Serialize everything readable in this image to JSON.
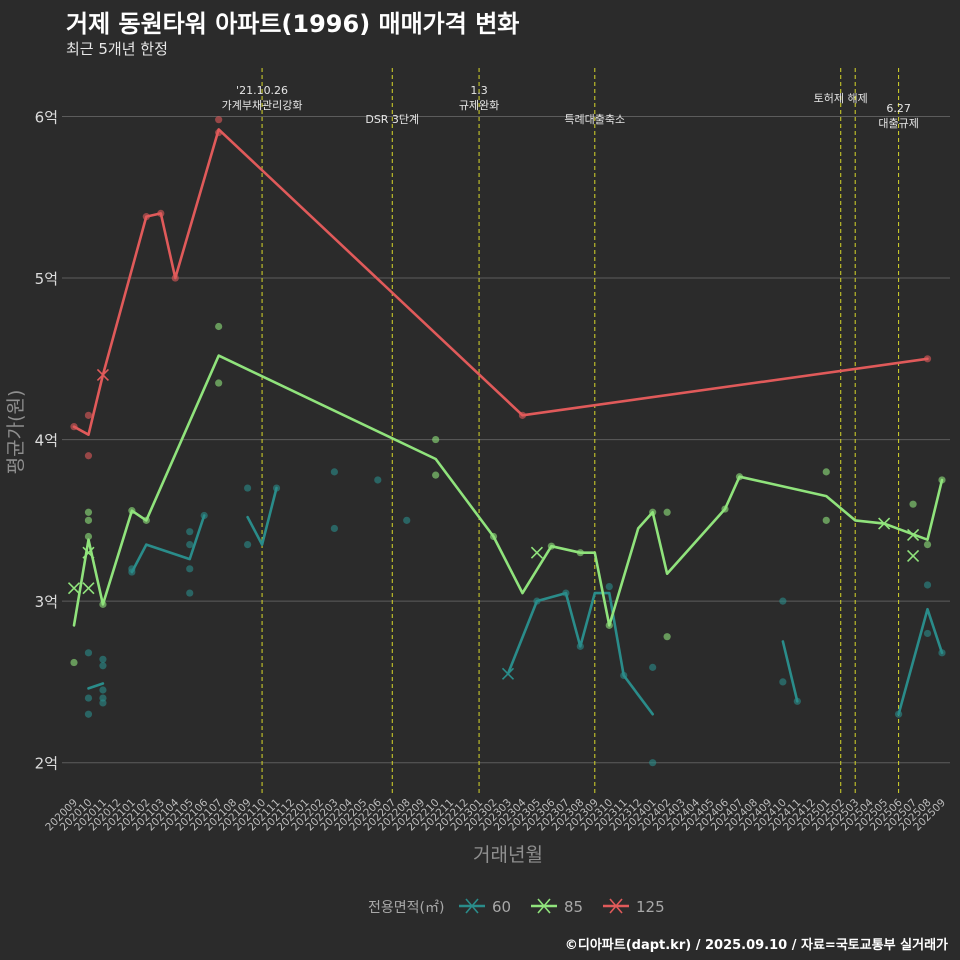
{
  "title": "거제 동원타워 아파트(1996) 매매가격 변화",
  "subtitle": "최근 5개년 한정",
  "caption": "©디아파트(dapt.kr) / 2025.09.10 / 자료=국토교통부 실거래가",
  "colors": {
    "background": "#2b2b2b",
    "grid": "#5c5c5c",
    "event_line": "#d7d72a",
    "s60": "#2a8c8a",
    "s85": "#90e37c",
    "s125": "#e05a5a"
  },
  "chart_data": {
    "type": "line",
    "xlabel": "거래년월",
    "ylabel": "평균가(원)",
    "ylim": [
      1.8,
      6.3
    ],
    "y_ticks": [
      {
        "value": 2,
        "label": "2억"
      },
      {
        "value": 3,
        "label": "3억"
      },
      {
        "value": 4,
        "label": "4억"
      },
      {
        "value": 5,
        "label": "5억"
      },
      {
        "value": 6,
        "label": "6억"
      }
    ],
    "categories": [
      "202009",
      "202010",
      "202011",
      "202012",
      "202101",
      "202102",
      "202103",
      "202104",
      "202105",
      "202106",
      "202107",
      "202108",
      "202109",
      "202110",
      "202111",
      "202112",
      "202201",
      "202202",
      "202203",
      "202204",
      "202205",
      "202206",
      "202207",
      "202208",
      "202209",
      "202210",
      "202211",
      "202212",
      "202301",
      "202302",
      "202303",
      "202304",
      "202305",
      "202306",
      "202307",
      "202308",
      "202309",
      "202310",
      "202311",
      "202312",
      "202401",
      "202402",
      "202403",
      "202404",
      "202405",
      "202406",
      "202407",
      "202408",
      "202409",
      "202410",
      "202411",
      "202412",
      "202501",
      "202502",
      "202503",
      "202504",
      "202505",
      "202506",
      "202507",
      "202508",
      "202509"
    ],
    "legend_title": "전용면적(㎡)",
    "legend_position": "bottom",
    "events": [
      {
        "x": "202110",
        "lines": [
          "'21.10.26",
          "가계부채관리강화"
        ],
        "row": "top"
      },
      {
        "x": "202207",
        "lines": [
          "DSR 3단계"
        ],
        "row": "low"
      },
      {
        "x": "202301",
        "lines": [
          "1.3",
          "규제완화"
        ],
        "row": "top"
      },
      {
        "x": "202309",
        "lines": [
          "특례대출축소"
        ],
        "row": "low"
      },
      {
        "x": "202502",
        "lines": [
          "토허제 해제"
        ],
        "row": "mid"
      },
      {
        "x": "202503",
        "lines": [],
        "row": "mid"
      },
      {
        "x": "202506",
        "lines": [
          "6.27",
          "대출규제"
        ],
        "row": "lower"
      }
    ],
    "series": [
      {
        "name": "60",
        "color": "#2a8c8a",
        "line_segments": [
          [
            [
              "202010",
              2.46
            ],
            [
              "202011",
              2.49
            ]
          ],
          [
            [
              "202101",
              3.18
            ],
            [
              "202102",
              3.35
            ],
            [
              "202105",
              3.26
            ],
            [
              "202106",
              3.53
            ]
          ],
          [
            [
              "202109",
              3.52
            ],
            [
              "202110",
              3.35
            ],
            [
              "202111",
              3.7
            ]
          ],
          [
            [
              "202303",
              2.55
            ],
            [
              "202305",
              3.0
            ],
            [
              "202307",
              3.05
            ],
            [
              "202308",
              2.72
            ],
            [
              "202309",
              3.05
            ],
            [
              "202310",
              3.05
            ],
            [
              "202311",
              2.54
            ],
            [
              "202401",
              2.3
            ]
          ],
          [
            [
              "202410",
              2.75
            ],
            [
              "202411",
              2.38
            ]
          ],
          [
            [
              "202506",
              2.3
            ],
            [
              "202508",
              2.95
            ],
            [
              "202509",
              2.68
            ]
          ]
        ],
        "points": [
          [
            "202010",
            2.68
          ],
          [
            "202010",
            2.4
          ],
          [
            "202010",
            2.3
          ],
          [
            "202011",
            2.64
          ],
          [
            "202011",
            2.6
          ],
          [
            "202011",
            2.45
          ],
          [
            "202011",
            2.4
          ],
          [
            "202011",
            2.37
          ],
          [
            "202101",
            3.2
          ],
          [
            "202101",
            3.18
          ],
          [
            "202105",
            3.43
          ],
          [
            "202105",
            3.35
          ],
          [
            "202105",
            3.2
          ],
          [
            "202105",
            3.05
          ],
          [
            "202106",
            3.53
          ],
          [
            "202109",
            3.7
          ],
          [
            "202109",
            3.35
          ],
          [
            "202111",
            3.7
          ],
          [
            "202203",
            3.8
          ],
          [
            "202203",
            3.45
          ],
          [
            "202206",
            3.75
          ],
          [
            "202208",
            3.5
          ],
          [
            "202305",
            3.0
          ],
          [
            "202307",
            3.05
          ],
          [
            "202308",
            2.72
          ],
          [
            "202310",
            3.09
          ],
          [
            "202311",
            2.54
          ],
          [
            "202401",
            2.59
          ],
          [
            "202401",
            2.0
          ],
          [
            "202410",
            3.0
          ],
          [
            "202410",
            2.5
          ],
          [
            "202411",
            2.38
          ],
          [
            "202506",
            2.3
          ],
          [
            "202508",
            3.1
          ],
          [
            "202508",
            2.8
          ],
          [
            "202509",
            2.68
          ]
        ],
        "crosses": [
          [
            "202303",
            2.55
          ]
        ]
      },
      {
        "name": "85",
        "color": "#90e37c",
        "line_segments": [
          [
            [
              "202009",
              2.85
            ],
            [
              "202010",
              3.38
            ],
            [
              "202011",
              2.98
            ],
            [
              "202101",
              3.56
            ],
            [
              "202102",
              3.5
            ],
            [
              "202107",
              4.52
            ],
            [
              "202210",
              3.88
            ],
            [
              "202302",
              3.4
            ],
            [
              "202304",
              3.05
            ],
            [
              "202306",
              3.34
            ],
            [
              "202308",
              3.3
            ],
            [
              "202309",
              3.3
            ],
            [
              "202310",
              2.85
            ],
            [
              "202312",
              3.45
            ],
            [
              "202401",
              3.55
            ],
            [
              "202402",
              3.17
            ],
            [
              "202406",
              3.57
            ],
            [
              "202407",
              3.77
            ],
            [
              "202501",
              3.65
            ],
            [
              "202503",
              3.5
            ],
            [
              "202505",
              3.48
            ],
            [
              "202508",
              3.38
            ],
            [
              "202509",
              3.75
            ]
          ]
        ],
        "points": [
          [
            "202009",
            2.62
          ],
          [
            "202010",
            3.55
          ],
          [
            "202010",
            3.5
          ],
          [
            "202010",
            3.4
          ],
          [
            "202011",
            2.98
          ],
          [
            "202101",
            3.56
          ],
          [
            "202102",
            3.5
          ],
          [
            "202107",
            4.7
          ],
          [
            "202107",
            4.35
          ],
          [
            "202210",
            4.0
          ],
          [
            "202210",
            3.78
          ],
          [
            "202302",
            3.4
          ],
          [
            "202306",
            3.34
          ],
          [
            "202308",
            3.3
          ],
          [
            "202310",
            2.85
          ],
          [
            "202401",
            3.55
          ],
          [
            "202402",
            3.55
          ],
          [
            "202402",
            2.78
          ],
          [
            "202406",
            3.57
          ],
          [
            "202407",
            3.77
          ],
          [
            "202501",
            3.8
          ],
          [
            "202501",
            3.5
          ],
          [
            "202507",
            3.6
          ],
          [
            "202508",
            3.35
          ],
          [
            "202509",
            3.75
          ]
        ],
        "crosses": [
          [
            "202009",
            3.08
          ],
          [
            "202010",
            3.08
          ],
          [
            "202010",
            3.3
          ],
          [
            "202305",
            3.3
          ],
          [
            "202505",
            3.48
          ],
          [
            "202507",
            3.28
          ],
          [
            "202507",
            3.41
          ]
        ]
      },
      {
        "name": "125",
        "color": "#e05a5a",
        "line_segments": [
          [
            [
              "202009",
              4.08
            ],
            [
              "202010",
              4.03
            ],
            [
              "202011",
              4.4
            ],
            [
              "202102",
              5.38
            ],
            [
              "202103",
              5.4
            ],
            [
              "202104",
              5.0
            ],
            [
              "202107",
              5.92
            ],
            [
              "202304",
              4.15
            ],
            [
              "202508",
              4.5
            ]
          ]
        ],
        "points": [
          [
            "202009",
            4.08
          ],
          [
            "202010",
            4.15
          ],
          [
            "202010",
            3.9
          ],
          [
            "202102",
            5.38
          ],
          [
            "202103",
            5.4
          ],
          [
            "202104",
            5.0
          ],
          [
            "202107",
            5.98
          ],
          [
            "202107",
            5.9
          ],
          [
            "202304",
            4.15
          ],
          [
            "202508",
            4.5
          ]
        ],
        "crosses": [
          [
            "202011",
            4.4
          ]
        ]
      }
    ]
  }
}
